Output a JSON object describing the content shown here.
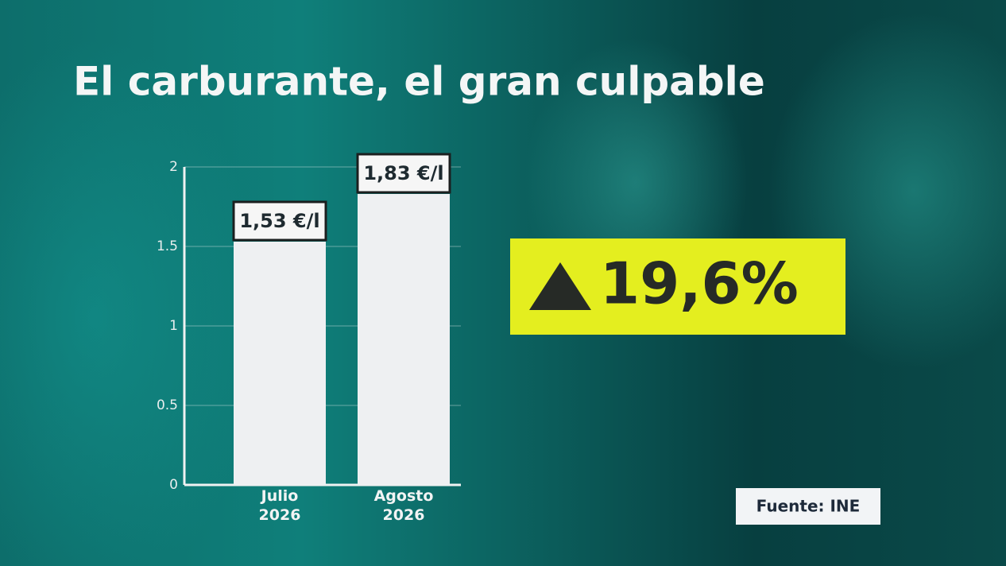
{
  "chart_data": {
    "type": "bar",
    "title": "El carburante, el gran culpable",
    "categories": [
      "Julio 2026",
      "Agosto 2026"
    ],
    "values": [
      1.53,
      1.83
    ],
    "value_labels": [
      "1,53 €/l",
      "1,83 €/l"
    ],
    "color": "#eef0f2",
    "ylim": [
      0,
      2
    ],
    "yticks": [
      0,
      0.5,
      1,
      1.5,
      2
    ],
    "grid": true,
    "annotation": "19,6%",
    "source": "Fuente: INE"
  }
}
